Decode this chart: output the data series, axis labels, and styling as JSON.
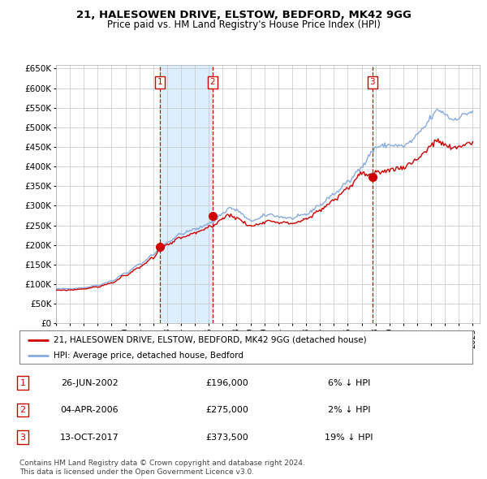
{
  "title1": "21, HALESOWEN DRIVE, ELSTOW, BEDFORD, MK42 9GG",
  "title2": "Price paid vs. HM Land Registry's House Price Index (HPI)",
  "xlim_start": 1995.0,
  "xlim_end": 2025.5,
  "ylim": [
    0,
    660000
  ],
  "yticks": [
    0,
    50000,
    100000,
    150000,
    200000,
    250000,
    300000,
    350000,
    400000,
    450000,
    500000,
    550000,
    600000,
    650000
  ],
  "ytick_labels": [
    "£0",
    "£50K",
    "£100K",
    "£150K",
    "£200K",
    "£250K",
    "£300K",
    "£350K",
    "£400K",
    "£450K",
    "£500K",
    "£550K",
    "£600K",
    "£650K"
  ],
  "sale_dates": [
    2002.484,
    2006.253,
    2017.784
  ],
  "sale_prices": [
    196000,
    275000,
    373500
  ],
  "sale_labels": [
    "1",
    "2",
    "3"
  ],
  "legend_red": "21, HALESOWEN DRIVE, ELSTOW, BEDFORD, MK42 9GG (detached house)",
  "legend_blue": "HPI: Average price, detached house, Bedford",
  "table_data": [
    [
      "1",
      "26-JUN-2002",
      "£196,000",
      "6% ↓ HPI"
    ],
    [
      "2",
      "04-APR-2006",
      "£275,000",
      "2% ↓ HPI"
    ],
    [
      "3",
      "13-OCT-2017",
      "£373,500",
      "19% ↓ HPI"
    ]
  ],
  "footnote1": "Contains HM Land Registry data © Crown copyright and database right 2024.",
  "footnote2": "This data is licensed under the Open Government Licence v3.0.",
  "red_color": "#cc0000",
  "blue_color": "#88aadd",
  "shade_color": "#ddeeff",
  "vline_color": "#cc0000",
  "box_color": "#cc0000",
  "bg_color": "#ffffff",
  "grid_color": "#cccccc",
  "hpi_anchors": {
    "1995.0": 88000,
    "1996.0": 88500,
    "1997.0": 91000,
    "1998.0": 97000,
    "1999.0": 108000,
    "2000.0": 128000,
    "2001.0": 150000,
    "2002.0": 175000,
    "2002.5": 192000,
    "2003.0": 207000,
    "2004.0": 228000,
    "2005.0": 240000,
    "2006.25": 258000,
    "2007.0": 280000,
    "2007.5": 295000,
    "2008.0": 288000,
    "2009.0": 262000,
    "2009.5": 265000,
    "2010.0": 275000,
    "2010.5": 278000,
    "2011.0": 272000,
    "2012.0": 268000,
    "2013.0": 278000,
    "2014.0": 302000,
    "2015.0": 330000,
    "2016.0": 360000,
    "2017.0": 400000,
    "2017.8": 438000,
    "2018.0": 450000,
    "2019.0": 455000,
    "2020.0": 452000,
    "2020.5": 462000,
    "2021.0": 480000,
    "2021.5": 500000,
    "2022.0": 525000,
    "2022.5": 545000,
    "2023.0": 535000,
    "2023.5": 520000,
    "2024.0": 525000,
    "2024.5": 535000,
    "2025.0": 540000
  },
  "red_anchors": {
    "1995.0": 84000,
    "1996.0": 85000,
    "1997.0": 88000,
    "1998.0": 93000,
    "1999.0": 103000,
    "2000.0": 122000,
    "2001.0": 143000,
    "2002.0": 168000,
    "2002.5": 188000,
    "2003.0": 200000,
    "2004.0": 218000,
    "2005.0": 230000,
    "2006.25": 248000,
    "2007.0": 268000,
    "2007.5": 278000,
    "2008.0": 268000,
    "2009.0": 248000,
    "2009.5": 252000,
    "2010.0": 260000,
    "2010.5": 262000,
    "2011.0": 258000,
    "2012.0": 255000,
    "2013.0": 265000,
    "2014.0": 288000,
    "2015.0": 315000,
    "2016.0": 345000,
    "2017.0": 382000,
    "2017.8": 375000,
    "2018.0": 382000,
    "2019.0": 392000,
    "2020.0": 398000,
    "2020.5": 408000,
    "2021.0": 420000,
    "2021.5": 435000,
    "2022.0": 455000,
    "2022.5": 465000,
    "2023.0": 455000,
    "2023.5": 445000,
    "2024.0": 450000,
    "2024.5": 458000,
    "2025.0": 462000
  }
}
